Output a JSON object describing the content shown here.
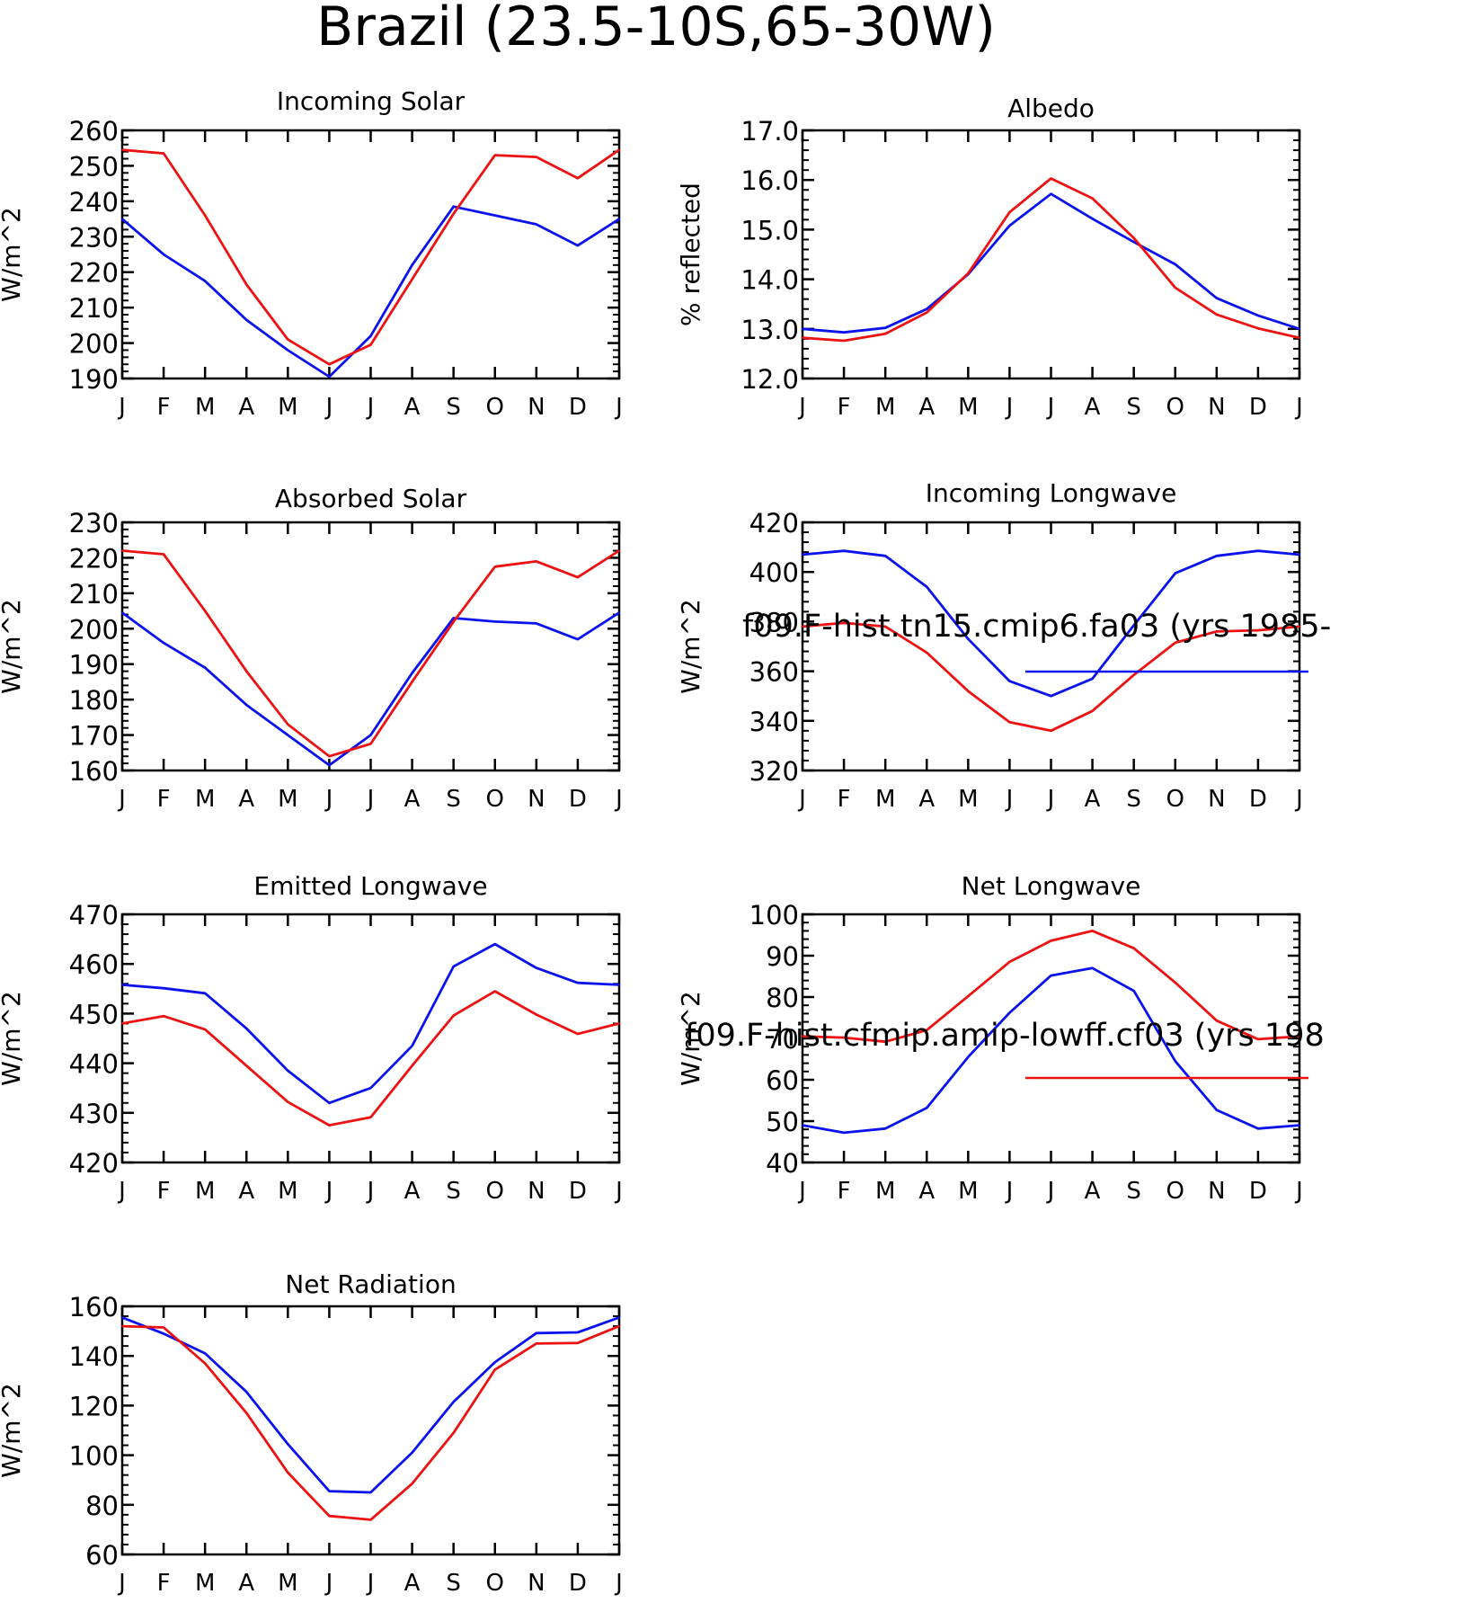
{
  "page_title": "Brazil (23.5-10S,65-30W)",
  "colors": {
    "series_a": "#0a12ee",
    "series_b": "#ee1111",
    "axes": "#000000"
  },
  "legend": {
    "entries": [
      {
        "label": "f09.F-hist.tn15.cmip6.fa03 (yrs 1985-",
        "color": "#0a12ee"
      },
      {
        "label": "f09.F-hist.cfmip.amip-lowff.cf03 (yrs 198",
        "color": "#ee1111"
      }
    ]
  },
  "chart_data": [
    {
      "type": "line",
      "title": "Incoming Solar",
      "ylabel": "W/m^2",
      "categories": [
        "J",
        "F",
        "M",
        "A",
        "M",
        "J",
        "J",
        "A",
        "S",
        "O",
        "N",
        "D",
        "J"
      ],
      "ylim": [
        190,
        260
      ],
      "yticks": [
        190,
        200,
        210,
        220,
        230,
        240,
        250,
        260
      ],
      "ytick_labels": [
        "190",
        "200",
        "210",
        "220",
        "230",
        "240",
        "250",
        "260"
      ],
      "series": [
        {
          "values": [
            235.0,
            225.0,
            217.5,
            206.5,
            198.0,
            190.5,
            202.0,
            222.0,
            238.5,
            236.0,
            233.5,
            227.5,
            235.0
          ]
        },
        {
          "values": [
            254.5,
            253.5,
            236.0,
            216.5,
            201.0,
            194.0,
            199.5,
            218.0,
            236.5,
            253.0,
            252.5,
            246.5,
            254.5
          ]
        }
      ]
    },
    {
      "type": "line",
      "title": "Albedo",
      "ylabel": "% reflected",
      "categories": [
        "J",
        "F",
        "M",
        "A",
        "M",
        "J",
        "J",
        "A",
        "S",
        "O",
        "N",
        "D",
        "J"
      ],
      "ylim": [
        12.0,
        17.0
      ],
      "yticks": [
        12,
        13,
        14,
        15,
        16,
        17
      ],
      "ytick_labels": [
        "12.0",
        "13.0",
        "14.0",
        "15.0",
        "16.0",
        "17.0"
      ],
      "series": [
        {
          "values": [
            13.0,
            12.93,
            13.02,
            13.4,
            14.1,
            15.08,
            15.72,
            15.22,
            14.75,
            14.3,
            13.62,
            13.27,
            13.0
          ]
        },
        {
          "values": [
            12.82,
            12.76,
            12.9,
            13.33,
            14.12,
            15.35,
            16.03,
            15.63,
            14.83,
            13.83,
            13.29,
            13.01,
            12.82
          ]
        }
      ]
    },
    {
      "type": "line",
      "title": "Absorbed Solar",
      "ylabel": "W/m^2",
      "categories": [
        "J",
        "F",
        "M",
        "A",
        "M",
        "J",
        "J",
        "A",
        "S",
        "O",
        "N",
        "D",
        "J"
      ],
      "ylim": [
        160,
        230
      ],
      "yticks": [
        160,
        170,
        180,
        190,
        200,
        210,
        220,
        230
      ],
      "ytick_labels": [
        "160",
        "170",
        "180",
        "190",
        "200",
        "210",
        "220",
        "230"
      ],
      "series": [
        {
          "values": [
            204.5,
            196.0,
            189.0,
            178.5,
            170.0,
            161.5,
            170.0,
            187.5,
            203.0,
            202.0,
            201.5,
            197.0,
            204.5
          ]
        },
        {
          "values": [
            222.0,
            221.0,
            205.0,
            188.0,
            173.0,
            164.0,
            167.5,
            185.0,
            202.0,
            217.5,
            219.0,
            214.5,
            222.0
          ]
        }
      ]
    },
    {
      "type": "line",
      "title": "Incoming Longwave",
      "ylabel": "W/m^2",
      "categories": [
        "J",
        "F",
        "M",
        "A",
        "M",
        "J",
        "J",
        "A",
        "S",
        "O",
        "N",
        "D",
        "J"
      ],
      "ylim": [
        320,
        420
      ],
      "yticks": [
        320,
        340,
        360,
        380,
        400,
        420
      ],
      "ytick_labels": [
        "320",
        "340",
        "360",
        "380",
        "400",
        "420"
      ],
      "series": [
        {
          "values": [
            407.0,
            408.5,
            406.5,
            394.0,
            373.0,
            356.0,
            350.0,
            357.0,
            378.5,
            399.5,
            406.5,
            408.5,
            407.0
          ]
        },
        {
          "values": [
            378.0,
            379.5,
            378.0,
            367.5,
            352.0,
            339.5,
            336.0,
            344.0,
            358.5,
            371.5,
            376.0,
            376.5,
            378.0
          ]
        }
      ]
    },
    {
      "type": "line",
      "title": "Emitted Longwave",
      "ylabel": "W/m^2",
      "categories": [
        "J",
        "F",
        "M",
        "A",
        "M",
        "J",
        "J",
        "A",
        "S",
        "O",
        "N",
        "D",
        "J"
      ],
      "ylim": [
        420,
        470
      ],
      "yticks": [
        420,
        430,
        440,
        450,
        460,
        470
      ],
      "ytick_labels": [
        "420",
        "430",
        "440",
        "450",
        "460",
        "470"
      ],
      "series": [
        {
          "values": [
            455.8,
            455.1,
            454.1,
            447.0,
            438.5,
            432.0,
            435.0,
            443.5,
            459.5,
            464.0,
            459.2,
            456.2,
            455.8
          ]
        },
        {
          "values": [
            448.0,
            449.5,
            446.8,
            439.5,
            432.2,
            427.5,
            429.1,
            439.5,
            449.6,
            454.5,
            449.8,
            445.9,
            448.0
          ]
        }
      ]
    },
    {
      "type": "line",
      "title": "Net Longwave",
      "ylabel": "W/m^2",
      "categories": [
        "J",
        "F",
        "M",
        "A",
        "M",
        "J",
        "J",
        "A",
        "S",
        "O",
        "N",
        "D",
        "J"
      ],
      "ylim": [
        40,
        100
      ],
      "yticks": [
        40,
        50,
        60,
        70,
        80,
        90,
        100
      ],
      "ytick_labels": [
        "40",
        "50",
        "60",
        "70",
        "80",
        "90",
        "100"
      ],
      "series": [
        {
          "values": [
            49.0,
            47.2,
            48.2,
            53.2,
            65.5,
            76.2,
            85.2,
            87.0,
            81.5,
            64.5,
            52.7,
            48.2,
            49.0
          ]
        },
        {
          "values": [
            70.5,
            70.2,
            69.2,
            72.0,
            80.2,
            88.5,
            93.6,
            96.0,
            91.8,
            83.5,
            74.3,
            69.8,
            70.5
          ]
        }
      ]
    },
    {
      "type": "line",
      "title": "Net Radiation",
      "ylabel": "W/m^2",
      "categories": [
        "J",
        "F",
        "M",
        "A",
        "M",
        "J",
        "J",
        "A",
        "S",
        "O",
        "N",
        "D",
        "J"
      ],
      "ylim": [
        60,
        160
      ],
      "yticks": [
        60,
        80,
        100,
        120,
        140,
        160
      ],
      "ytick_labels": [
        "60",
        "80",
        "100",
        "120",
        "140",
        "160"
      ],
      "series": [
        {
          "values": [
            155.5,
            149.0,
            141.0,
            125.5,
            104.5,
            85.5,
            85.0,
            101.0,
            121.5,
            137.5,
            149.2,
            149.5,
            155.5
          ]
        },
        {
          "values": [
            152.0,
            151.5,
            137.0,
            117.0,
            93.0,
            75.5,
            74.0,
            88.5,
            109.0,
            134.5,
            145.0,
            145.2,
            152.0
          ]
        }
      ]
    }
  ]
}
